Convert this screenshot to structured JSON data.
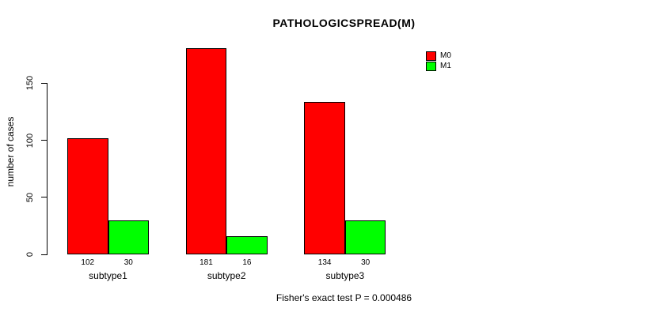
{
  "chart_data": {
    "type": "bar",
    "title": "PATHOLOGICSPREAD(M)",
    "ylabel": "number of cases",
    "xlabel": "",
    "categories": [
      "subtype1",
      "subtype2",
      "subtype3"
    ],
    "series": [
      {
        "name": "M0",
        "color": "#FF0000",
        "values": [
          102,
          181,
          134
        ]
      },
      {
        "name": "M1",
        "color": "#00FF00",
        "values": [
          30,
          16,
          30
        ]
      }
    ],
    "yticks": [
      0,
      50,
      100,
      150
    ],
    "ylim": [
      0,
      186
    ],
    "grid": false,
    "bar_borders": "#000000",
    "bar_value_labels_shown": true,
    "legend_position": "top-right",
    "legend_entries": [
      "M0",
      "M1"
    ],
    "annotation": "Fisher's exact test P = 0.000486"
  }
}
